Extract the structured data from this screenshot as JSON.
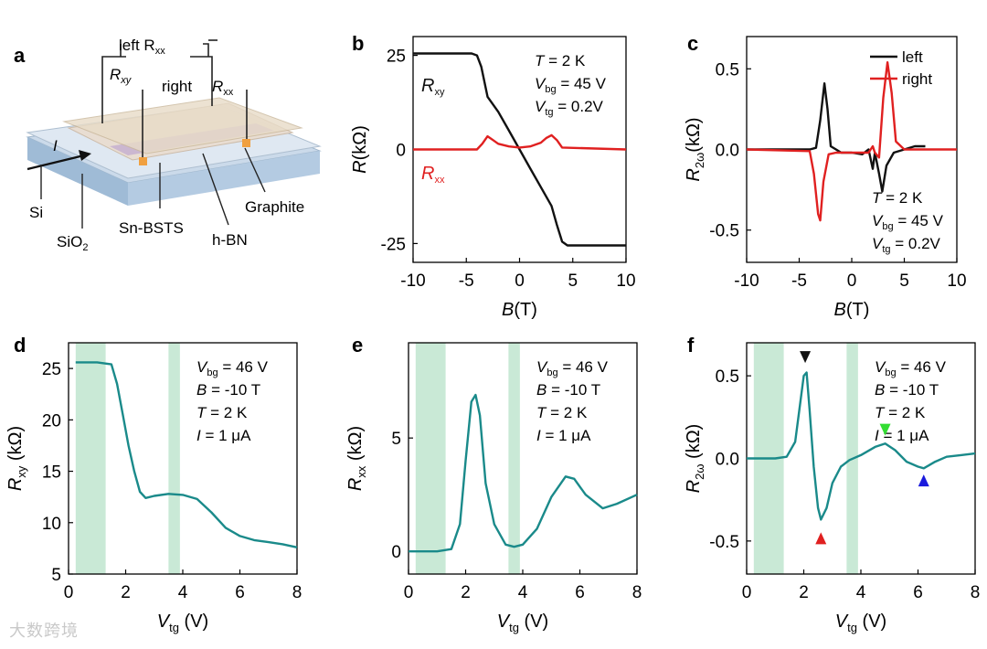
{
  "colors": {
    "teal": "#1a8a8a",
    "shade": "#c9e9d6",
    "black": "#111111",
    "red": "#e02020",
    "green": "#33dd33",
    "blue": "#1a1add"
  },
  "watermark": "大数跨境",
  "panel_a": {
    "letter": "a",
    "labels": {
      "left_rxx": "left R",
      "left_rxx_sub": "xx",
      "rxy": "R",
      "rxy_sub": "xy",
      "right": "right",
      "right_rxx": "R",
      "right_rxx_sub": "xx",
      "current": "I",
      "si": "Si",
      "sio2": "SiO",
      "sio2_sub": "2",
      "sn_bsts": "Sn-BSTS",
      "hbn": "h-BN",
      "graphite": "Graphite"
    }
  },
  "chart_data": [
    {
      "id": "b",
      "type": "line",
      "letter": "b",
      "xlabel": "B(T)",
      "ylabel": "R(kΩ)",
      "xlim": [
        -10,
        10
      ],
      "ylim": [
        -30,
        30
      ],
      "xticks": [
        "-10",
        "-5",
        "0",
        "5",
        "10"
      ],
      "yticks": [
        "25",
        "0",
        "-25"
      ],
      "annotations": [
        {
          "main": "T",
          "sub": "",
          "rest": " = 2 K"
        },
        {
          "main": "V",
          "sub": "bg",
          "rest": " = 45 V"
        },
        {
          "main": "V",
          "sub": "tg",
          "rest": " = 0.2V"
        }
      ],
      "series": [
        {
          "name": "Rxy",
          "label_main": "R",
          "label_sub": "xy",
          "color": "#111111",
          "x": [
            -10,
            -4.5,
            -4,
            -3.6,
            -3,
            -2,
            -1,
            0,
            1,
            2,
            3,
            3.5,
            4,
            4.5,
            10
          ],
          "y": [
            25.5,
            25.5,
            25,
            22,
            14,
            10,
            5,
            0,
            -5,
            -10,
            -15,
            -20,
            -24.5,
            -25.5,
            -25.5
          ]
        },
        {
          "name": "Rxx",
          "label_main": "R",
          "label_sub": "xx",
          "color": "#e02020",
          "x": [
            -10,
            -4,
            -3.5,
            -3,
            -2.5,
            -2,
            -1,
            0,
            1,
            2,
            2.5,
            3,
            3.5,
            4,
            10
          ],
          "y": [
            0,
            0,
            1.5,
            3.5,
            2.5,
            1.5,
            0.8,
            0.5,
            0.8,
            1.8,
            3,
            3.8,
            2.5,
            0.5,
            0
          ]
        }
      ]
    },
    {
      "id": "c",
      "type": "line",
      "letter": "c",
      "xlabel": "B(T)",
      "ylabel": "R2ω(kΩ)",
      "xlim": [
        -10,
        10
      ],
      "ylim": [
        -0.7,
        0.7
      ],
      "xticks": [
        "-10",
        "-5",
        "0",
        "5",
        "10"
      ],
      "yticks": [
        "0.5",
        "0.0",
        "-0.5"
      ],
      "legend": [
        {
          "label": "left",
          "color": "#111111"
        },
        {
          "label": "right",
          "color": "#e02020"
        }
      ],
      "annotations": [
        {
          "main": "T",
          "sub": "",
          "rest": " = 2 K"
        },
        {
          "main": "V",
          "sub": "bg",
          "rest": " = 45 V"
        },
        {
          "main": "V",
          "sub": "tg",
          "rest": " = 0.2V"
        }
      ],
      "series": [
        {
          "name": "left",
          "color": "#111111",
          "x": [
            -10,
            -4,
            -3.4,
            -3,
            -2.6,
            -2.3,
            -2,
            -1.5,
            -1,
            0,
            1,
            1.6,
            2,
            2.2,
            2.6,
            2.9,
            3.3,
            4,
            5,
            6,
            7
          ],
          "y": [
            0,
            0,
            0.01,
            0.18,
            0.41,
            0.25,
            0.02,
            0,
            -0.02,
            -0.02,
            -0.03,
            0,
            -0.12,
            -0.02,
            -0.15,
            -0.26,
            -0.1,
            -0.02,
            0,
            0.02,
            0.02
          ]
        },
        {
          "name": "right",
          "color": "#e02020",
          "x": [
            -10,
            -4,
            -3.6,
            -3.2,
            -3,
            -2.7,
            -2.2,
            -1.5,
            0,
            1,
            1.6,
            2,
            2.2,
            2.6,
            3,
            3.4,
            3.8,
            4.2,
            5,
            10
          ],
          "y": [
            0,
            -0.01,
            -0.15,
            -0.4,
            -0.44,
            -0.2,
            -0.03,
            -0.02,
            -0.02,
            -0.02,
            -0.02,
            0.02,
            -0.02,
            -0.05,
            0.32,
            0.54,
            0.35,
            0.05,
            0,
            0
          ]
        }
      ]
    },
    {
      "id": "d",
      "type": "line",
      "letter": "d",
      "xlabel": "Vtg (V)",
      "ylabel": "Rxy (kΩ)",
      "xlim": [
        0,
        8
      ],
      "ylim": [
        5,
        27.5
      ],
      "xticks": [
        "0",
        "2",
        "4",
        "6",
        "8"
      ],
      "yticks": [
        "5",
        "10",
        "15",
        "20",
        "25"
      ],
      "shaded": [
        [
          0.25,
          1.3
        ],
        [
          3.5,
          3.9
        ]
      ],
      "annotations": [
        {
          "main": "V",
          "sub": "bg",
          "rest": " = 46 V"
        },
        {
          "main": "B",
          "sub": "",
          "rest": " = -10 T"
        },
        {
          "main": "T",
          "sub": "",
          "rest": " = 2 K"
        },
        {
          "main": "I",
          "sub": "",
          "rest": " = 1 μA"
        }
      ],
      "series": [
        {
          "name": "Rxy",
          "color": "#1a8a8a",
          "x": [
            0.25,
            1.0,
            1.5,
            1.7,
            1.9,
            2.1,
            2.3,
            2.5,
            2.7,
            3.0,
            3.5,
            4.0,
            4.5,
            5.0,
            5.5,
            6.0,
            6.5,
            7.0,
            7.5,
            8.0
          ],
          "y": [
            25.6,
            25.6,
            25.4,
            23.5,
            20.5,
            17.5,
            15,
            13,
            12.4,
            12.6,
            12.8,
            12.7,
            12.3,
            11,
            9.5,
            8.7,
            8.3,
            8.1,
            7.9,
            7.6
          ]
        }
      ]
    },
    {
      "id": "e",
      "type": "line",
      "letter": "e",
      "xlabel": "Vtg (V)",
      "ylabel": "Rxx (kΩ)",
      "xlim": [
        0,
        8
      ],
      "ylim": [
        -1,
        9.2
      ],
      "xticks": [
        "0",
        "2",
        "4",
        "6",
        "8"
      ],
      "yticks": [
        "0",
        "5"
      ],
      "shaded": [
        [
          0.25,
          1.3
        ],
        [
          3.5,
          3.9
        ]
      ],
      "annotations": [
        {
          "main": "V",
          "sub": "bg",
          "rest": " = 46 V"
        },
        {
          "main": "B",
          "sub": "",
          "rest": " = -10 T"
        },
        {
          "main": "T",
          "sub": "",
          "rest": " = 2 K"
        },
        {
          "main": "I",
          "sub": "",
          "rest": " = 1 μA"
        }
      ],
      "series": [
        {
          "name": "Rxx",
          "color": "#1a8a8a",
          "x": [
            0,
            1,
            1.5,
            1.8,
            2.0,
            2.2,
            2.35,
            2.5,
            2.7,
            3.0,
            3.4,
            3.7,
            4.0,
            4.5,
            5.0,
            5.5,
            5.8,
            6.2,
            6.8,
            7.3,
            8.0
          ],
          "y": [
            0,
            0,
            0.1,
            1.2,
            4,
            6.6,
            6.9,
            6,
            3,
            1.2,
            0.3,
            0.2,
            0.3,
            1,
            2.4,
            3.3,
            3.2,
            2.5,
            1.9,
            2.1,
            2.5
          ]
        }
      ]
    },
    {
      "id": "f",
      "type": "line",
      "letter": "f",
      "xlabel": "Vtg (V)",
      "ylabel": "R2ω (kΩ)",
      "xlim": [
        0,
        8
      ],
      "ylim": [
        -0.7,
        0.7
      ],
      "xticks": [
        "0",
        "2",
        "4",
        "6",
        "8"
      ],
      "yticks": [
        "0.5",
        "0.0",
        "-0.5"
      ],
      "shaded": [
        [
          0.25,
          1.3
        ],
        [
          3.5,
          3.9
        ]
      ],
      "annotations": [
        {
          "main": "V",
          "sub": "bg",
          "rest": " = 46 V"
        },
        {
          "main": "B",
          "sub": "",
          "rest": " = -10 T"
        },
        {
          "main": "T",
          "sub": "",
          "rest": " = 2 K"
        },
        {
          "main": "I",
          "sub": "",
          "rest": " = 1 μA"
        }
      ],
      "markers": [
        {
          "x": 2.05,
          "y": 0.6,
          "dir": "down",
          "color": "#111111"
        },
        {
          "x": 2.6,
          "y": -0.47,
          "dir": "up",
          "color": "#e02020"
        },
        {
          "x": 4.85,
          "y": 0.16,
          "dir": "down",
          "color": "#33dd33"
        },
        {
          "x": 6.2,
          "y": -0.12,
          "dir": "up",
          "color": "#1a1add"
        }
      ],
      "series": [
        {
          "name": "R2w",
          "color": "#1a8a8a",
          "x": [
            0,
            1,
            1.4,
            1.7,
            1.85,
            2.0,
            2.1,
            2.2,
            2.35,
            2.5,
            2.6,
            2.8,
            3.0,
            3.3,
            3.6,
            4.0,
            4.5,
            4.85,
            5.2,
            5.6,
            6.0,
            6.2,
            6.6,
            7.0,
            7.5,
            8.0
          ],
          "y": [
            0,
            0,
            0.01,
            0.1,
            0.3,
            0.5,
            0.52,
            0.3,
            -0.05,
            -0.3,
            -0.37,
            -0.3,
            -0.15,
            -0.05,
            -0.01,
            0.02,
            0.07,
            0.09,
            0.05,
            -0.02,
            -0.05,
            -0.06,
            -0.02,
            0.01,
            0.02,
            0.03
          ]
        }
      ]
    }
  ]
}
